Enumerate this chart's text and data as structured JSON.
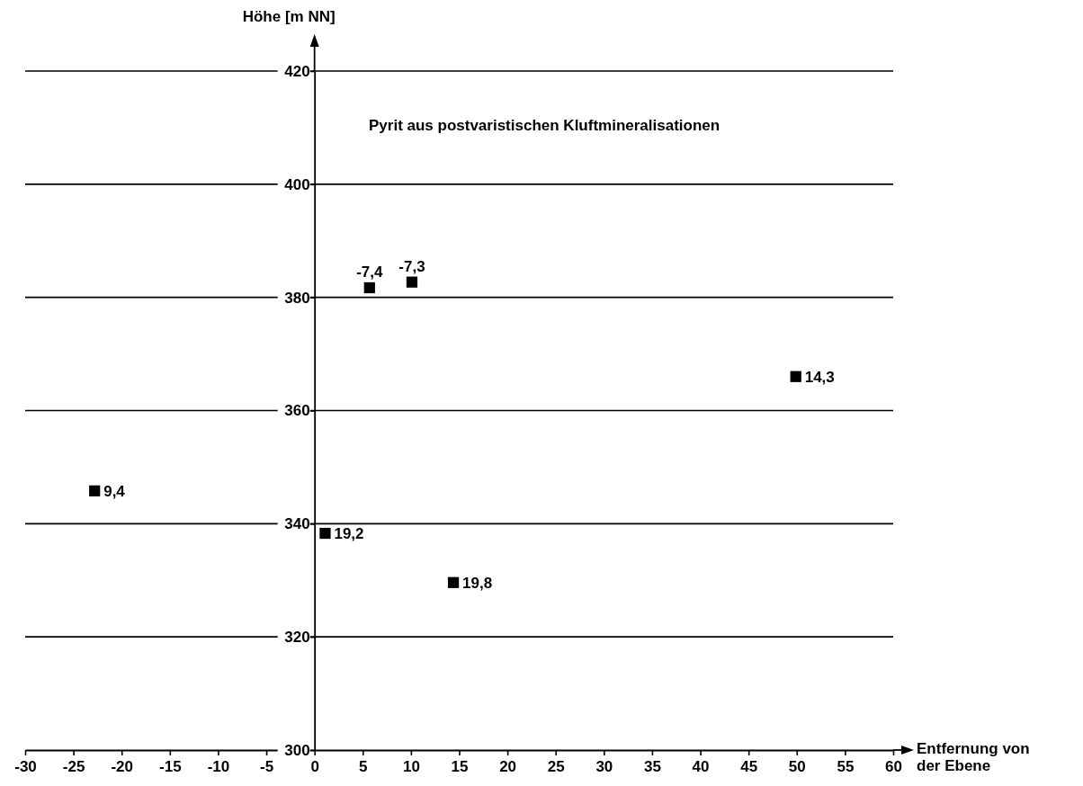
{
  "chart_data": {
    "type": "scatter",
    "title": "Pyrit aus postvaristischen Kluftmineralisationen",
    "xlabel": "Entfernung von der Ebene",
    "ylabel": "Höhe [m NN]",
    "x": [
      -22.8,
      1.1,
      5.7,
      10.1,
      14.4,
      49.9
    ],
    "values": [
      345.8,
      338.3,
      381.7,
      382.7,
      329.6,
      366.0
    ],
    "color": "#000000",
    "marker": "square",
    "grid": "y",
    "xlim": [
      -30,
      60
    ],
    "xticks": [
      -30,
      -25,
      -20,
      -15,
      -10,
      -5,
      0,
      5,
      10,
      15,
      20,
      25,
      30,
      35,
      40,
      45,
      50,
      55,
      60
    ],
    "ylim": [
      300,
      420
    ],
    "yticks": [
      300,
      320,
      340,
      360,
      380,
      400,
      420
    ],
    "annotations": [
      {
        "text": "9,4",
        "x": -22.8,
        "y": 345.8
      },
      {
        "text": "19,2",
        "x": 1.1,
        "y": 338.3
      },
      {
        "text": "-7,4",
        "x": 5.7,
        "y": 381.7
      },
      {
        "text": "-7,3",
        "x": 10.1,
        "y": 382.7
      },
      {
        "text": "19,8",
        "x": 14.4,
        "y": 329.6
      },
      {
        "text": "14,3",
        "x": 49.9,
        "y": 366.0
      }
    ]
  }
}
